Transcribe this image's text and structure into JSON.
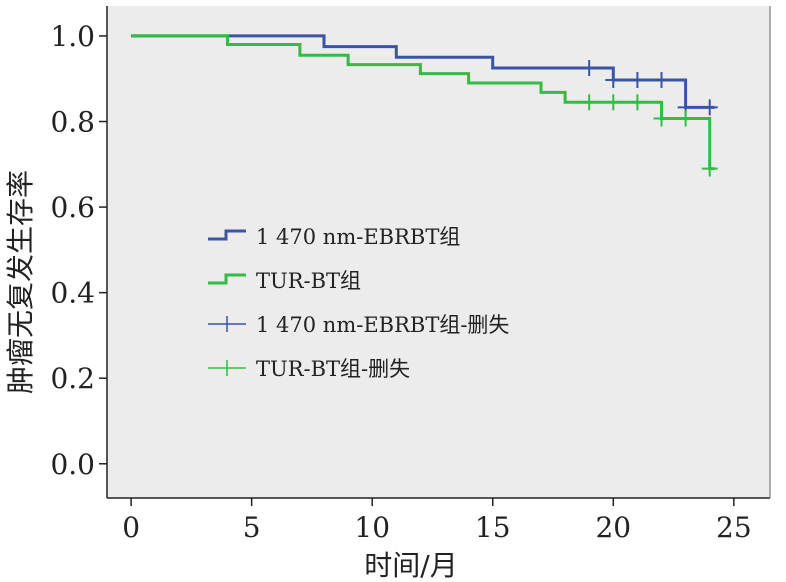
{
  "chart_data": {
    "type": "line",
    "subtype": "kaplan-meier-step",
    "title": "",
    "xlabel": "时间/月",
    "ylabel": "肿瘤无复发生存率",
    "xlim": [
      -1,
      26.5
    ],
    "ylim": [
      -0.08,
      1.07
    ],
    "x_ticks": [
      0,
      5,
      10,
      15,
      20,
      25
    ],
    "y_ticks": [
      0.0,
      0.2,
      0.4,
      0.6,
      0.8,
      1.0
    ],
    "x_tick_labels": [
      "0",
      "5",
      "10",
      "15",
      "20",
      "25"
    ],
    "y_tick_labels": [
      "0.0",
      "0.2",
      "0.4",
      "0.6",
      "0.8",
      "1.0"
    ],
    "grid": false,
    "background": "#ececec",
    "legend_position": "center-left",
    "series": [
      {
        "name": "1 470 nm-EBRBT组",
        "color": "#3b55a5",
        "steps": [
          [
            0,
            1.0
          ],
          [
            8,
            0.975
          ],
          [
            11,
            0.95
          ],
          [
            15,
            0.925
          ],
          [
            20,
            0.897
          ],
          [
            23,
            0.833
          ]
        ],
        "end_x": 24.2
      },
      {
        "name": "TUR-BT组",
        "color": "#33bb44",
        "steps": [
          [
            0,
            1.0
          ],
          [
            4,
            0.98
          ],
          [
            7,
            0.955
          ],
          [
            9,
            0.933
          ],
          [
            12,
            0.912
          ],
          [
            14,
            0.89
          ],
          [
            17,
            0.868
          ],
          [
            18,
            0.845
          ],
          [
            22,
            0.807
          ],
          [
            24,
            0.69
          ]
        ],
        "end_x": 24.2
      }
    ],
    "censored": [
      {
        "name": "1 470 nm-EBRBT组-删失",
        "color": "#3b55a5",
        "points": [
          [
            19,
            0.925
          ],
          [
            20,
            0.897
          ],
          [
            21,
            0.897
          ],
          [
            22,
            0.897
          ],
          [
            23,
            0.833
          ],
          [
            24,
            0.833
          ]
        ]
      },
      {
        "name": "TUR-BT组-删失",
        "color": "#33bb44",
        "points": [
          [
            19,
            0.845
          ],
          [
            20,
            0.845
          ],
          [
            21,
            0.845
          ],
          [
            22,
            0.807
          ],
          [
            23,
            0.807
          ],
          [
            24,
            0.69
          ]
        ]
      }
    ]
  }
}
